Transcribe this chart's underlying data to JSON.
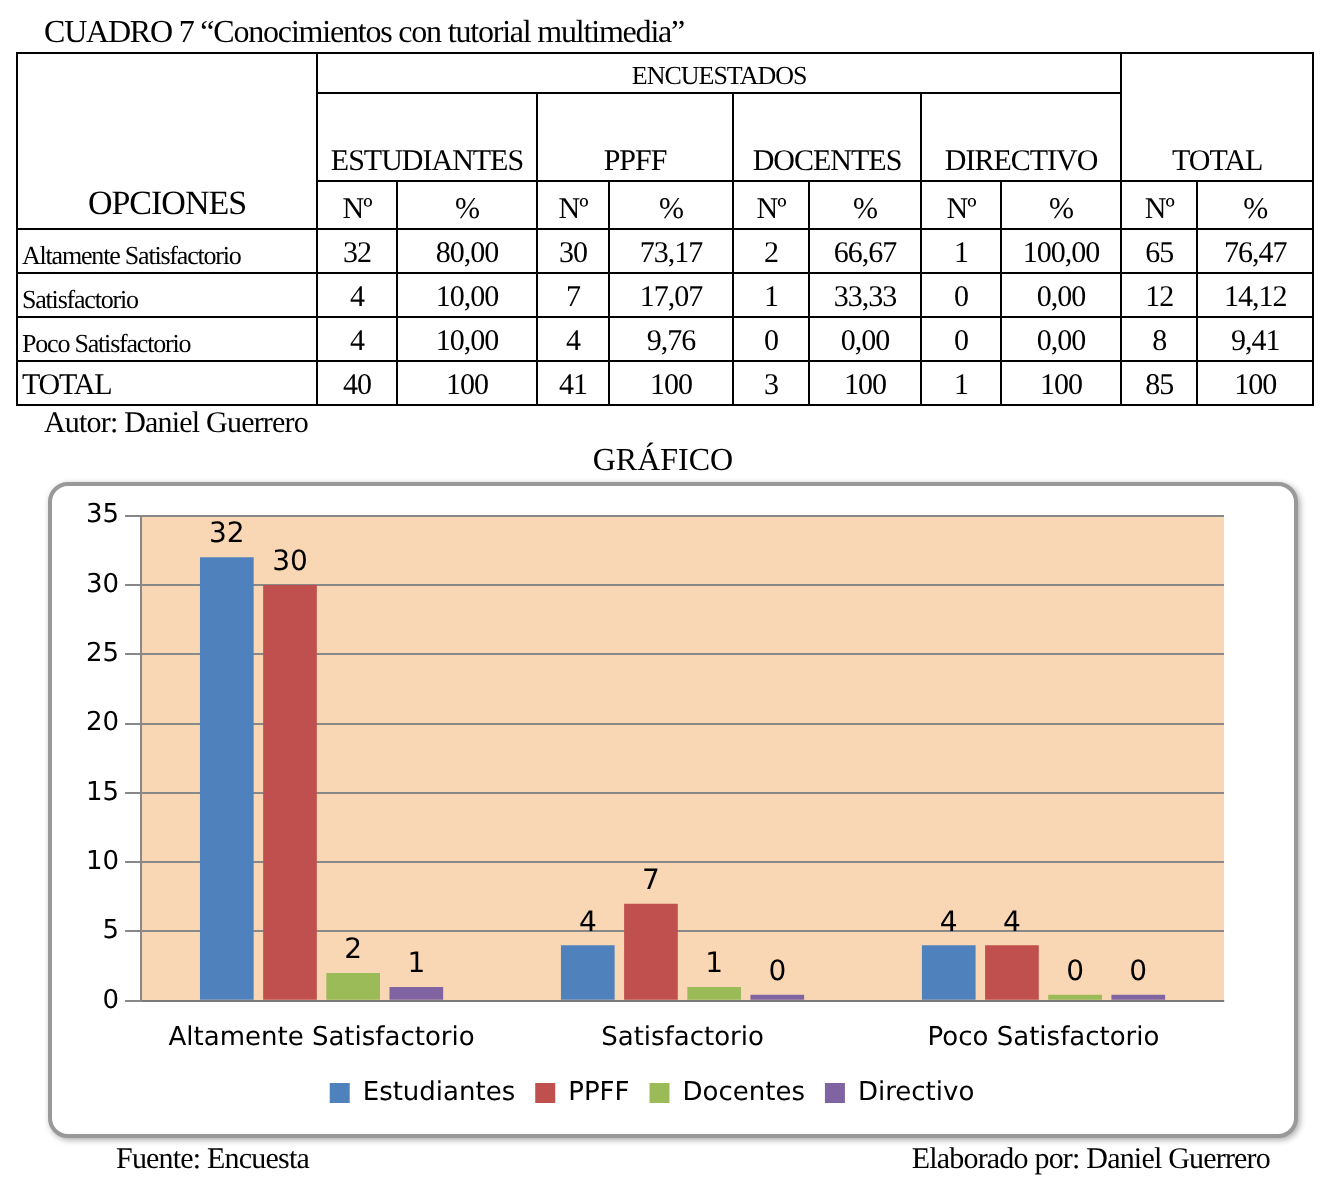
{
  "chart_data": {
    "type": "bar",
    "title": "GRÁFICO",
    "categories": [
      "Altamente Satisfactorio",
      "Satisfactorio",
      "Poco Satisfactorio"
    ],
    "series": [
      {
        "name": "Estudiantes",
        "color": "#4f81bd",
        "values": [
          32,
          4,
          4
        ]
      },
      {
        "name": "PPFF",
        "color": "#c0504d",
        "values": [
          30,
          7,
          4
        ]
      },
      {
        "name": "Docentes",
        "color": "#9bbb59",
        "values": [
          2,
          1,
          0
        ]
      },
      {
        "name": "Directivo",
        "color": "#8064a2",
        "values": [
          1,
          0,
          0
        ]
      }
    ],
    "ylim": [
      0,
      35
    ],
    "yticks": [
      0,
      5,
      10,
      15,
      20,
      25,
      30,
      35
    ],
    "grid": "y",
    "legend": "bottom",
    "data_labels": true,
    "annotations": [
      "CUADRO 7 “Conocimientos con tutorial multimedia”",
      "ENCUESTADOS",
      "OPCIONES",
      "ESTUDIANTES",
      "PPFF",
      "DOCENTES",
      "DIRECTIVO",
      "TOTAL",
      "Nº",
      "%",
      "Nº",
      "%",
      "Nº",
      "%",
      "Nº",
      "%",
      "Nº",
      "%",
      "Altamente Satisfactorio",
      "32",
      "80,00",
      "30",
      "73,17",
      "2",
      "66,67",
      "1",
      "100,00",
      "65",
      "76,47",
      "Satisfactorio",
      "4",
      "10,00",
      "7",
      "17,07",
      "1",
      "33,33",
      "0",
      "0,00",
      "12",
      "14,12",
      "Poco Satisfactorio",
      "4",
      "10,00",
      "4",
      "9,76",
      "0",
      "0,00",
      "0",
      "0,00",
      "8",
      "9,41",
      "TOTAL",
      "40",
      "100",
      "41",
      "100",
      "3",
      "100",
      "1",
      "100",
      "85",
      "100",
      "Autor: Daniel Guerrero",
      "Fuente: Encuesta",
      "Elaborado por: Daniel Guerrero"
    ]
  }
}
